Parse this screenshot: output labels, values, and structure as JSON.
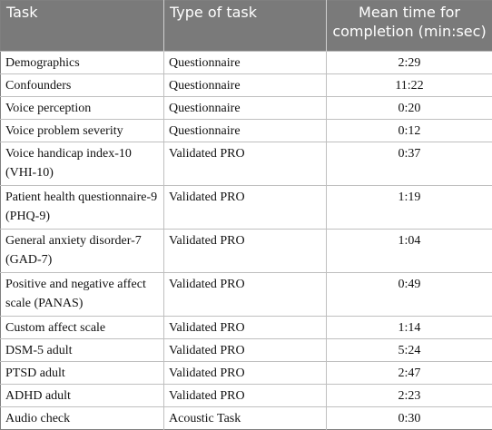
{
  "table": {
    "headers": [
      "Task",
      "Type of task",
      "Mean time for completion (min:sec)"
    ],
    "rows": [
      {
        "task": "Demographics",
        "type": "Questionnaire",
        "time": "2:29"
      },
      {
        "task": "Confounders",
        "type": "Questionnaire",
        "time": "11:22"
      },
      {
        "task": "Voice perception",
        "type": "Questionnaire",
        "time": "0:20"
      },
      {
        "task": "Voice problem severity",
        "type": "Questionnaire",
        "time": "0:12"
      },
      {
        "task": "Voice handicap index-10 (VHI-10)",
        "type": "Validated PRO",
        "time": "0:37"
      },
      {
        "task": "Patient health questionnaire-9 (PHQ-9)",
        "type": "Validated PRO",
        "time": "1:19"
      },
      {
        "task": "General anxiety disorder-7 (GAD-7)",
        "type": "Validated PRO",
        "time": "1:04"
      },
      {
        "task": "Positive and negative affect scale (PANAS)",
        "type": "Validated PRO",
        "time": "0:49"
      },
      {
        "task": "Custom affect scale",
        "type": "Validated PRO",
        "time": "1:14"
      },
      {
        "task": "DSM-5 adult",
        "type": "Validated PRO",
        "time": "5:24"
      },
      {
        "task": "PTSD adult",
        "type": "Validated PRO",
        "time": "2:47"
      },
      {
        "task": "ADHD adult",
        "type": "Validated PRO",
        "time": "2:23"
      },
      {
        "task": "Audio check",
        "type": "Acoustic Task",
        "time": "0:30"
      }
    ]
  }
}
